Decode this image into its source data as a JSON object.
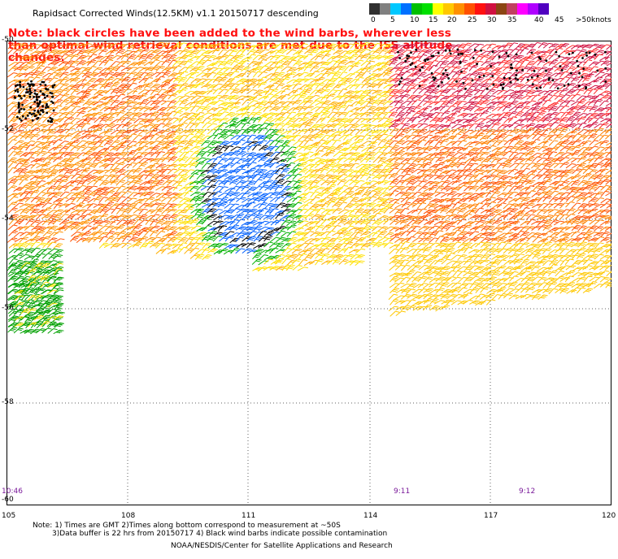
{
  "title": "Rapidsact Corrected Winds(12.5KM) v1.1 20150717 descending",
  "note": "Note: black circles have been added to the wind barbs, wherever less than optimal wind retrieval conditions are met due to the ISS altitude changes.",
  "colorbar": {
    "unit": "knots",
    "labels": [
      "0",
      "5",
      "10",
      "15",
      "20",
      "25",
      "30",
      "35",
      "40",
      "45",
      ">50"
    ],
    "colors": [
      "#303030",
      "#808080",
      "#00c8ff",
      "#0070ff",
      "#00c000",
      "#00e000",
      "#ffff00",
      "#ffc800",
      "#ff9000",
      "#ff5000",
      "#ff1010",
      "#d01040",
      "#8b4513",
      "#c04060",
      "#ff00ff",
      "#b000ff",
      "#5000c0"
    ]
  },
  "map": {
    "lat_ticks": [
      "-50",
      "-52",
      "-54",
      "-56",
      "-58",
      "-60"
    ],
    "lon_ticks": [
      "105",
      "108",
      "111",
      "114",
      "117",
      "120"
    ],
    "time_labels": [
      "10:46",
      "9:11",
      "9:12"
    ],
    "lat_range": [
      -60,
      -50
    ],
    "lon_range": [
      105,
      120
    ],
    "grid": "dotted"
  },
  "footnote": {
    "line1": "Note: 1) Times are GMT 2)Times along bottom correspond to measurement at ~50S",
    "line2": "3)Data buffer is 22 hrs from 20150717 4) Black wind barbs indicate possible contamination"
  },
  "credit": "NOAA/NESDIS/Center for Satellite Applications and Research"
}
